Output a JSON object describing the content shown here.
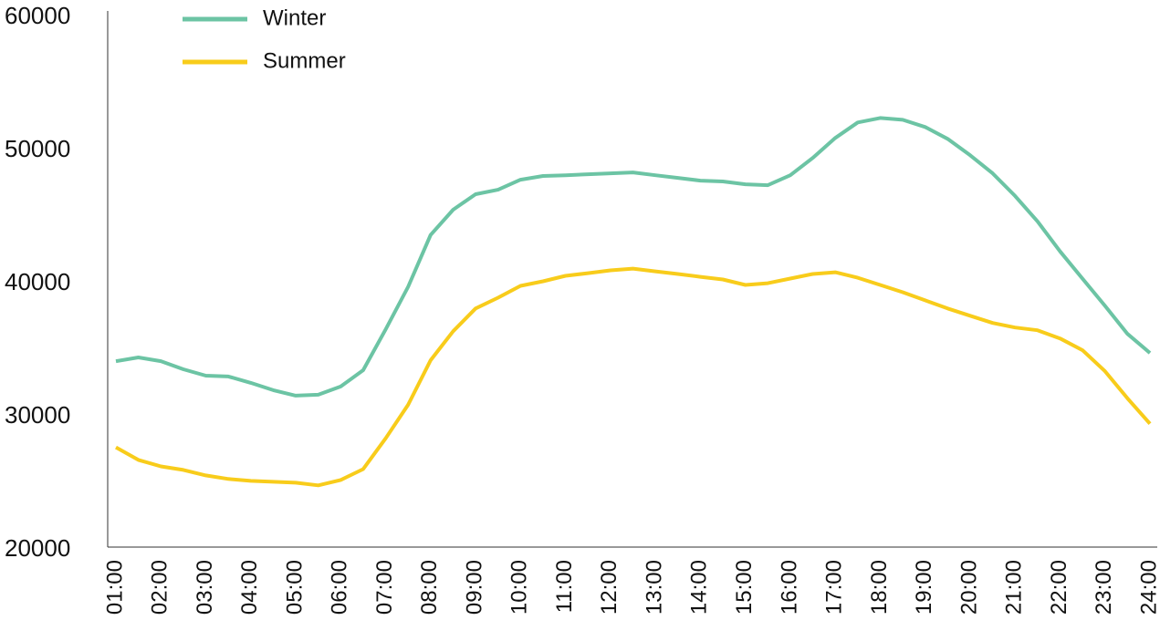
{
  "chart_data": {
    "type": "line",
    "categories": [
      "01:00",
      null,
      "02:00",
      null,
      "03:00",
      null,
      "04:00",
      null,
      "05:00",
      null,
      "06:00",
      null,
      "07:00",
      null,
      "08:00",
      null,
      "09:00",
      null,
      "10:00",
      null,
      "11:00",
      null,
      "12:00",
      null,
      "13:00",
      null,
      "14:00",
      null,
      "15:00",
      null,
      "16:00",
      null,
      "17:00",
      null,
      "18:00",
      null,
      "19:00",
      null,
      "20:00",
      null,
      "21:00",
      null,
      "22:00",
      null,
      "23:00",
      null,
      "24:00"
    ],
    "series": [
      {
        "name": "Winter",
        "color": "#6cc4a4",
        "values": [
          34170,
          34450,
          34170,
          33560,
          33080,
          33020,
          32540,
          31990,
          31580,
          31650,
          32270,
          33490,
          36560,
          39760,
          43650,
          45550,
          46710,
          47050,
          47800,
          48080,
          48140,
          48210,
          48280,
          48350,
          48140,
          47940,
          47730,
          47670,
          47460,
          47390,
          48140,
          49440,
          50940,
          52100,
          52440,
          52300,
          51760,
          50870,
          49640,
          48280,
          46580,
          44670,
          42420,
          40370,
          38330,
          36220,
          34790
        ]
      },
      {
        "name": "Summer",
        "color": "#f8cc1b",
        "values": [
          27700,
          26750,
          26270,
          26000,
          25590,
          25320,
          25180,
          25110,
          25040,
          24840,
          25250,
          26060,
          28380,
          30900,
          34240,
          36420,
          38130,
          38940,
          39830,
          40170,
          40580,
          40780,
          40990,
          41120,
          40920,
          40720,
          40510,
          40310,
          39900,
          40030,
          40380,
          40720,
          40850,
          40440,
          39900,
          39350,
          38740,
          38130,
          37580,
          37040,
          36700,
          36490,
          35880,
          34990,
          33420,
          31380,
          29470
        ]
      }
    ],
    "ylim": [
      20000,
      60000
    ],
    "yticks": [
      20000,
      30000,
      40000,
      50000,
      60000
    ],
    "legend": "top-left"
  }
}
